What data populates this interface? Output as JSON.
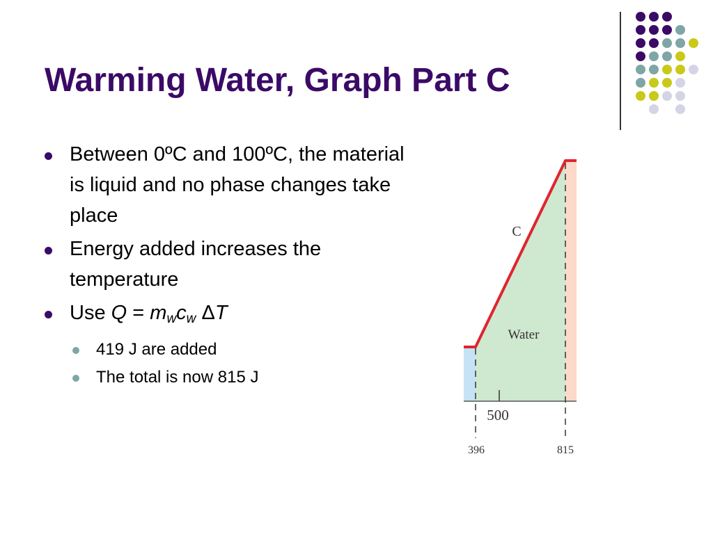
{
  "title": "Warming Water, Graph Part C",
  "bullets": {
    "b1": "Between 0ºC and 100ºC, the material is liquid and no phase changes take place",
    "b2": "Energy added increases the temperature",
    "b3_prefix": "Use ",
    "b3_Q": "Q",
    "b3_eq": " = ",
    "b3_m": "m",
    "b3_m_sub": "w",
    "b3_c": "c",
    "b3_c_sub": "w",
    "b3_delta": " Δ",
    "b3_T": "T",
    "sub1": "419 J are added",
    "sub2": "The total is now 815 J"
  },
  "graph": {
    "segment_label": "C",
    "region_label": "Water",
    "tick_500": "500",
    "x_396": "396",
    "x_815": "815"
  },
  "colors": {
    "title": "#3b0a66",
    "dot_purple": "#3b0a66",
    "dot_teal": "#7ea6a6",
    "dot_yellow": "#c9c91a",
    "dot_lavender": "#d4d4e6",
    "curve_red": "#e0242f",
    "water_green": "#cfe8d0",
    "ice_blue": "#c6e2f5",
    "steam_peach": "#fcd9c8"
  }
}
